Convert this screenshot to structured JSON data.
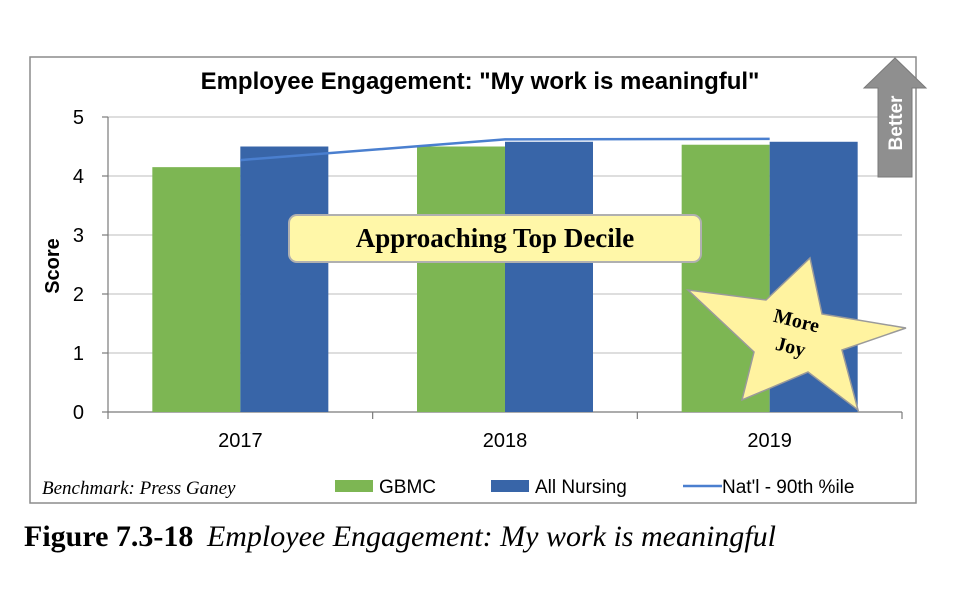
{
  "chart_data": {
    "type": "bar",
    "title": "Employee Engagement: \"My work is meaningful\"",
    "ylabel": "Score",
    "xlabel": "",
    "categories": [
      "2017",
      "2018",
      "2019"
    ],
    "ylim": [
      0,
      5
    ],
    "yticks": [
      "0",
      "1",
      "2",
      "3",
      "4",
      "5"
    ],
    "series": [
      {
        "name": "GBMC",
        "type": "bar",
        "color": "#7db653",
        "values": [
          4.15,
          4.5,
          4.53
        ]
      },
      {
        "name": "All Nursing",
        "type": "bar",
        "color": "#3865a8",
        "values": [
          4.5,
          4.58,
          4.58
        ]
      },
      {
        "name": "Nat'l - 90th %ile",
        "type": "line",
        "color": "#4a7fcf",
        "values": [
          4.27,
          4.62,
          4.63
        ]
      }
    ],
    "grid": true,
    "legend": "bottom",
    "annotations": {
      "callout": "Approaching Top Decile",
      "star_line1": "More",
      "star_line2": "Joy",
      "arrow_label": "Better",
      "benchmark": "Benchmark: Press Ganey"
    }
  },
  "caption": {
    "number": "Figure 7.3-18",
    "text": "Employee Engagement: My work is meaningful"
  }
}
